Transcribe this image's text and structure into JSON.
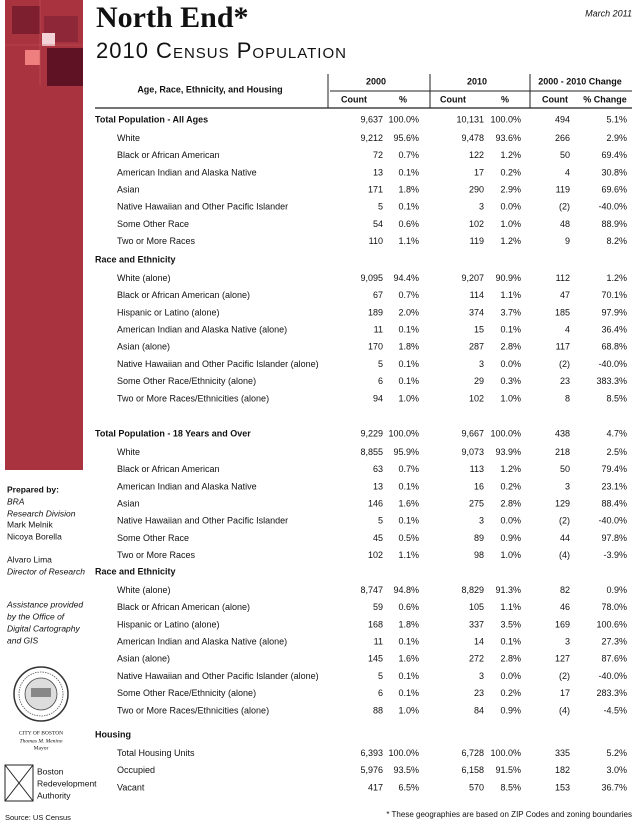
{
  "header": {
    "title": "North End*",
    "subtitle": "2010 Census Population",
    "date": "March 2011"
  },
  "table": {
    "caption": "Age, Race, Ethnicity, and Housing",
    "column_groups": [
      "2000",
      "2010",
      "2000 - 2010 Change"
    ],
    "columns": [
      "Count",
      "%",
      "Count",
      "%",
      "Count",
      "% Change"
    ],
    "groups": [
      {
        "heading": "Total Population - All Ages",
        "values": [
          "9,637",
          "100.0%",
          "10,131",
          "100.0%",
          "494",
          "5.1%"
        ],
        "rows": [
          {
            "label": "White",
            "values": [
              "9,212",
              "95.6%",
              "9,478",
              "93.6%",
              "266",
              "2.9%"
            ]
          },
          {
            "label": "Black or African American",
            "values": [
              "72",
              "0.7%",
              "122",
              "1.2%",
              "50",
              "69.4%"
            ]
          },
          {
            "label": "American Indian and Alaska Native",
            "values": [
              "13",
              "0.1%",
              "17",
              "0.2%",
              "4",
              "30.8%"
            ]
          },
          {
            "label": "Asian",
            "values": [
              "171",
              "1.8%",
              "290",
              "2.9%",
              "119",
              "69.6%"
            ]
          },
          {
            "label": "Native Hawaiian and Other Pacific Islander",
            "values": [
              "5",
              "0.1%",
              "3",
              "0.0%",
              "(2)",
              "-40.0%"
            ]
          },
          {
            "label": "Some Other Race",
            "values": [
              "54",
              "0.6%",
              "102",
              "1.0%",
              "48",
              "88.9%"
            ]
          },
          {
            "label": "Two or More Races",
            "values": [
              "110",
              "1.1%",
              "119",
              "1.2%",
              "9",
              "8.2%"
            ]
          }
        ]
      },
      {
        "heading": "Race and Ethnicity",
        "rows": [
          {
            "label": "White (alone)",
            "values": [
              "9,095",
              "94.4%",
              "9,207",
              "90.9%",
              "112",
              "1.2%"
            ]
          },
          {
            "label": "Black or African American (alone)",
            "values": [
              "67",
              "0.7%",
              "114",
              "1.1%",
              "47",
              "70.1%"
            ]
          },
          {
            "label": "Hispanic or Latino (alone)",
            "values": [
              "189",
              "2.0%",
              "374",
              "3.7%",
              "185",
              "97.9%"
            ]
          },
          {
            "label": "American Indian and Alaska Native (alone)",
            "values": [
              "11",
              "0.1%",
              "15",
              "0.1%",
              "4",
              "36.4%"
            ]
          },
          {
            "label": "Asian (alone)",
            "values": [
              "170",
              "1.8%",
              "287",
              "2.8%",
              "117",
              "68.8%"
            ]
          },
          {
            "label": "Native Hawaiian and Other Pacific Islander (alone)",
            "values": [
              "5",
              "0.1%",
              "3",
              "0.0%",
              "(2)",
              "-40.0%"
            ]
          },
          {
            "label": "Some Other Race/Ethnicity (alone)",
            "values": [
              "6",
              "0.1%",
              "29",
              "0.3%",
              "23",
              "383.3%"
            ]
          },
          {
            "label": "Two or More Races/Ethnicities (alone)",
            "values": [
              "94",
              "1.0%",
              "102",
              "1.0%",
              "8",
              "8.5%"
            ]
          }
        ]
      },
      {
        "heading": "Total Population - 18 Years and Over",
        "values": [
          "9,229",
          "100.0%",
          "9,667",
          "100.0%",
          "438",
          "4.7%"
        ],
        "rows": [
          {
            "label": "White",
            "values": [
              "8,855",
              "95.9%",
              "9,073",
              "93.9%",
              "218",
              "2.5%"
            ]
          },
          {
            "label": "Black or African American",
            "values": [
              "63",
              "0.7%",
              "113",
              "1.2%",
              "50",
              "79.4%"
            ]
          },
          {
            "label": "American Indian and Alaska Native",
            "values": [
              "13",
              "0.1%",
              "16",
              "0.2%",
              "3",
              "23.1%"
            ]
          },
          {
            "label": "Asian",
            "values": [
              "146",
              "1.6%",
              "275",
              "2.8%",
              "129",
              "88.4%"
            ]
          },
          {
            "label": "Native Hawaiian and Other Pacific Islander",
            "values": [
              "5",
              "0.1%",
              "3",
              "0.0%",
              "(2)",
              "-40.0%"
            ]
          },
          {
            "label": "Some Other Race",
            "values": [
              "45",
              "0.5%",
              "89",
              "0.9%",
              "44",
              "97.8%"
            ]
          },
          {
            "label": "Two or More Races",
            "values": [
              "102",
              "1.1%",
              "98",
              "1.0%",
              "(4)",
              "-3.9%"
            ]
          }
        ]
      },
      {
        "heading": "Race and Ethnicity",
        "rows": [
          {
            "label": "White (alone)",
            "values": [
              "8,747",
              "94.8%",
              "8,829",
              "91.3%",
              "82",
              "0.9%"
            ]
          },
          {
            "label": "Black or African American (alone)",
            "values": [
              "59",
              "0.6%",
              "105",
              "1.1%",
              "46",
              "78.0%"
            ]
          },
          {
            "label": "Hispanic or Latino (alone)",
            "values": [
              "168",
              "1.8%",
              "337",
              "3.5%",
              "169",
              "100.6%"
            ]
          },
          {
            "label": "American Indian and Alaska Native (alone)",
            "values": [
              "11",
              "0.1%",
              "14",
              "0.1%",
              "3",
              "27.3%"
            ]
          },
          {
            "label": "Asian (alone)",
            "values": [
              "145",
              "1.6%",
              "272",
              "2.8%",
              "127",
              "87.6%"
            ]
          },
          {
            "label": "Native Hawaiian and Other Pacific Islander (alone)",
            "values": [
              "5",
              "0.1%",
              "3",
              "0.0%",
              "(2)",
              "-40.0%"
            ]
          },
          {
            "label": "Some Other Race/Ethnicity (alone)",
            "values": [
              "6",
              "0.1%",
              "23",
              "0.2%",
              "17",
              "283.3%"
            ]
          },
          {
            "label": "Two or More Races/Ethnicities (alone)",
            "values": [
              "88",
              "1.0%",
              "84",
              "0.9%",
              "(4)",
              "-4.5%"
            ]
          }
        ]
      },
      {
        "heading": "Housing",
        "rows": [
          {
            "label": "Total Housing Units",
            "values": [
              "6,393",
              "100.0%",
              "6,728",
              "100.0%",
              "335",
              "5.2%"
            ]
          },
          {
            "label": "Occupied",
            "values": [
              "5,976",
              "93.5%",
              "6,158",
              "91.5%",
              "182",
              "3.0%"
            ]
          },
          {
            "label": "Vacant",
            "values": [
              "417",
              "6.5%",
              "570",
              "8.5%",
              "153",
              "36.7%"
            ]
          }
        ]
      }
    ]
  },
  "sidebar": {
    "prepared_by": "Prepared by:",
    "org": [
      "BRA",
      "Research Division"
    ],
    "staff": [
      "Mark Melnik",
      "Nicoya Borella"
    ],
    "director_name": "Alvaro Lima",
    "director_title": "Director of Research",
    "assistance": [
      "Assistance provided",
      "by the Office of",
      "Digital Cartography",
      "and GIS"
    ],
    "city": [
      "CITY OF BOSTON",
      "Thomas M. Menino",
      "Mayor"
    ],
    "agency": [
      "Boston",
      "Redevelopment",
      "Authority"
    ]
  },
  "footer": {
    "source": "Source: US Census",
    "note": "* These geographies are based on ZIP Codes and zoning boundaries"
  }
}
